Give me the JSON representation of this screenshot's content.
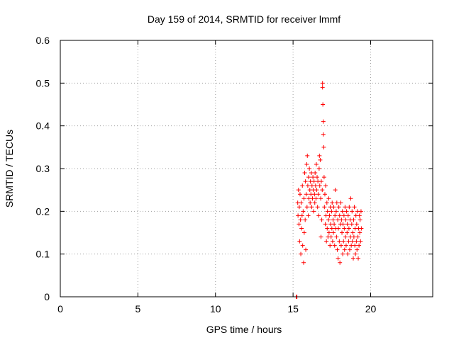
{
  "chart_data": {
    "type": "scatter",
    "title": "Day 159 of 2014, SRMTID for receiver lmmf",
    "xlabel": "GPS time / hours",
    "ylabel": "SRMTID / TECUs",
    "xlim": [
      0,
      24
    ],
    "ylim": [
      0,
      0.6
    ],
    "xticks": [
      0,
      5,
      10,
      15,
      20
    ],
    "xtick_labels": [
      "0",
      "5",
      "10",
      "15",
      "20"
    ],
    "yticks": [
      0,
      0.1,
      0.2,
      0.3,
      0.4,
      0.5,
      0.6
    ],
    "ytick_labels": [
      "0",
      "0.1",
      "0.2",
      "0.3",
      "0.4",
      "0.5",
      "0.6"
    ],
    "grid": true,
    "series": [
      {
        "name": "SRMTID",
        "color": "#ff0000",
        "marker": "plus",
        "points": [
          [
            15.2,
            0.0
          ],
          [
            15.22,
            0.0
          ],
          [
            15.25,
            0.0
          ],
          [
            15.3,
            0.22
          ],
          [
            15.32,
            0.19
          ],
          [
            15.35,
            0.25
          ],
          [
            15.38,
            0.17
          ],
          [
            15.4,
            0.21
          ],
          [
            15.42,
            0.13
          ],
          [
            15.45,
            0.24
          ],
          [
            15.48,
            0.18
          ],
          [
            15.5,
            0.1
          ],
          [
            15.52,
            0.22
          ],
          [
            15.55,
            0.16
          ],
          [
            15.58,
            0.19
          ],
          [
            15.6,
            0.26
          ],
          [
            15.62,
            0.12
          ],
          [
            15.65,
            0.2
          ],
          [
            15.68,
            0.08
          ],
          [
            15.7,
            0.23
          ],
          [
            15.72,
            0.15
          ],
          [
            15.75,
            0.29
          ],
          [
            15.78,
            0.18
          ],
          [
            15.8,
            0.27
          ],
          [
            15.82,
            0.11
          ],
          [
            15.85,
            0.24
          ],
          [
            15.88,
            0.31
          ],
          [
            15.9,
            0.21
          ],
          [
            15.92,
            0.33
          ],
          [
            15.95,
            0.26
          ],
          [
            15.98,
            0.19
          ],
          [
            16.0,
            0.28
          ],
          [
            16.02,
            0.23
          ],
          [
            16.05,
            0.3
          ],
          [
            16.08,
            0.25
          ],
          [
            16.1,
            0.22
          ],
          [
            16.12,
            0.27
          ],
          [
            16.15,
            0.24
          ],
          [
            16.18,
            0.29
          ],
          [
            16.2,
            0.21
          ],
          [
            16.22,
            0.26
          ],
          [
            16.25,
            0.23
          ],
          [
            16.28,
            0.28
          ],
          [
            16.3,
            0.25
          ],
          [
            16.32,
            0.2
          ],
          [
            16.35,
            0.27
          ],
          [
            16.38,
            0.24
          ],
          [
            16.4,
            0.22
          ],
          [
            16.42,
            0.29
          ],
          [
            16.45,
            0.26
          ],
          [
            16.48,
            0.23
          ],
          [
            16.5,
            0.31
          ],
          [
            16.52,
            0.25
          ],
          [
            16.55,
            0.28
          ],
          [
            16.58,
            0.21
          ],
          [
            16.6,
            0.27
          ],
          [
            16.62,
            0.24
          ],
          [
            16.65,
            0.19
          ],
          [
            16.68,
            0.3
          ],
          [
            16.7,
            0.33
          ],
          [
            16.72,
            0.26
          ],
          [
            16.75,
            0.32
          ],
          [
            16.78,
            0.23
          ],
          [
            16.8,
            0.14
          ],
          [
            16.82,
            0.27
          ],
          [
            16.85,
            0.18
          ],
          [
            16.88,
            0.25
          ],
          [
            16.9,
            0.5
          ],
          [
            16.9,
            0.49
          ],
          [
            16.92,
            0.45
          ],
          [
            16.95,
            0.41
          ],
          [
            16.95,
            0.38
          ],
          [
            16.98,
            0.35
          ],
          [
            17.0,
            0.28
          ],
          [
            17.02,
            0.21
          ],
          [
            17.05,
            0.24
          ],
          [
            17.08,
            0.17
          ],
          [
            17.1,
            0.26
          ],
          [
            17.12,
            0.19
          ],
          [
            17.15,
            0.13
          ],
          [
            17.18,
            0.22
          ],
          [
            17.2,
            0.16
          ],
          [
            17.22,
            0.2
          ],
          [
            17.25,
            0.14
          ],
          [
            17.28,
            0.18
          ],
          [
            17.3,
            0.23
          ],
          [
            17.32,
            0.15
          ],
          [
            17.35,
            0.19
          ],
          [
            17.38,
            0.12
          ],
          [
            17.4,
            0.21
          ],
          [
            17.42,
            0.17
          ],
          [
            17.45,
            0.14
          ],
          [
            17.48,
            0.2
          ],
          [
            17.5,
            0.16
          ],
          [
            17.52,
            0.22
          ],
          [
            17.55,
            0.13
          ],
          [
            17.58,
            0.18
          ],
          [
            17.6,
            0.15
          ],
          [
            17.62,
            0.21
          ],
          [
            17.65,
            0.17
          ],
          [
            17.68,
            0.12
          ],
          [
            17.7,
            0.19
          ],
          [
            17.72,
            0.25
          ],
          [
            17.75,
            0.16
          ],
          [
            17.78,
            0.2
          ],
          [
            17.8,
            0.14
          ],
          [
            17.82,
            0.22
          ],
          [
            17.85,
            0.11
          ],
          [
            17.88,
            0.18
          ],
          [
            17.9,
            0.09
          ],
          [
            17.92,
            0.16
          ],
          [
            17.95,
            0.21
          ],
          [
            17.98,
            0.13
          ],
          [
            18.0,
            0.19
          ],
          [
            18.02,
            0.08
          ],
          [
            18.05,
            0.17
          ],
          [
            18.08,
            0.22
          ],
          [
            18.1,
            0.12
          ],
          [
            18.12,
            0.18
          ],
          [
            18.15,
            0.15
          ],
          [
            18.18,
            0.2
          ],
          [
            18.2,
            0.1
          ],
          [
            18.22,
            0.17
          ],
          [
            18.25,
            0.13
          ],
          [
            18.28,
            0.19
          ],
          [
            18.3,
            0.16
          ],
          [
            18.32,
            0.11
          ],
          [
            18.35,
            0.21
          ],
          [
            18.38,
            0.14
          ],
          [
            18.4,
            0.18
          ],
          [
            18.42,
            0.12
          ],
          [
            18.45,
            0.2
          ],
          [
            18.48,
            0.15
          ],
          [
            18.5,
            0.17
          ],
          [
            18.52,
            0.1
          ],
          [
            18.55,
            0.19
          ],
          [
            18.58,
            0.13
          ],
          [
            18.6,
            0.16
          ],
          [
            18.62,
            0.21
          ],
          [
            18.65,
            0.11
          ],
          [
            18.68,
            0.18
          ],
          [
            18.7,
            0.14
          ],
          [
            18.72,
            0.23
          ],
          [
            18.75,
            0.12
          ],
          [
            18.78,
            0.17
          ],
          [
            18.8,
            0.2
          ],
          [
            18.82,
            0.13
          ],
          [
            18.85,
            0.15
          ],
          [
            18.88,
            0.09
          ],
          [
            18.9,
            0.18
          ],
          [
            18.92,
            0.14
          ],
          [
            18.95,
            0.21
          ],
          [
            18.98,
            0.12
          ],
          [
            19.0,
            0.16
          ],
          [
            19.02,
            0.1
          ],
          [
            19.05,
            0.19
          ],
          [
            19.08,
            0.13
          ],
          [
            19.1,
            0.17
          ],
          [
            19.12,
            0.11
          ],
          [
            19.15,
            0.2
          ],
          [
            19.18,
            0.14
          ],
          [
            19.2,
            0.09
          ],
          [
            19.22,
            0.16
          ],
          [
            19.25,
            0.12
          ],
          [
            19.28,
            0.19
          ],
          [
            19.3,
            0.15
          ],
          [
            19.32,
            0.18
          ],
          [
            19.35,
            0.13
          ],
          [
            19.38,
            0.2
          ],
          [
            19.4,
            0.16
          ]
        ]
      }
    ]
  }
}
